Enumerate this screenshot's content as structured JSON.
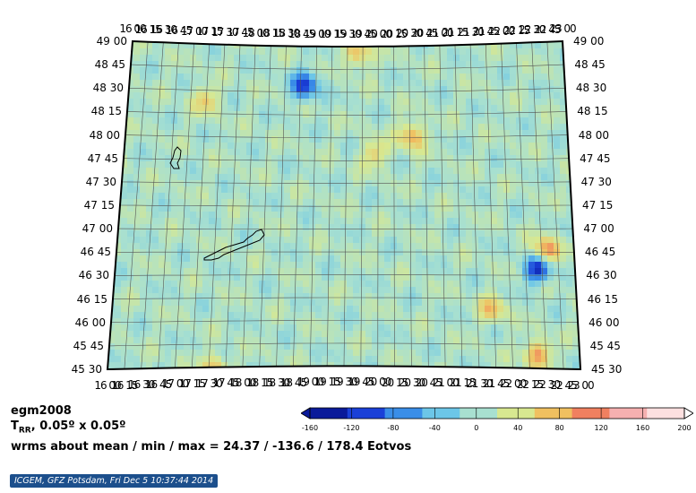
{
  "map": {
    "projection": "curved lat/lon grid (Lambert-like)",
    "lat_labels": [
      "49 00",
      "48 45",
      "48 30",
      "48 15",
      "48 00",
      "47 45",
      "47 30",
      "47 15",
      "47 00",
      "46 45",
      "46 30",
      "46 15",
      "46 00",
      "45 45",
      "45 30"
    ],
    "lon_labels_top": [
      "16 00",
      "16 15",
      "16 30",
      "16 45",
      "17 00",
      "17 15",
      "17 30",
      "17 45",
      "18 00",
      "18 15",
      "18 30",
      "18 45",
      "19 00",
      "19 15",
      "19 30",
      "19 45",
      "20 00",
      "20 15",
      "20 30",
      "20 45",
      "21 00",
      "21 15",
      "21 30",
      "21 45",
      "22 00",
      "22 15",
      "22 30",
      "22 45",
      "23 00"
    ],
    "lon_labels_bottom": [
      "16 00",
      "16 15",
      "16 30",
      "16 45",
      "17 00",
      "17 15",
      "17 30",
      "17 45",
      "18 00",
      "18 15",
      "18 30",
      "18 45",
      "19 00",
      "19 15",
      "19 30",
      "19 45",
      "20 00",
      "20 15",
      "20 30",
      "20 45",
      "21 00",
      "21 15",
      "21 30",
      "21 45",
      "22 00",
      "22 15",
      "22 30",
      "22 45",
      "23 00"
    ],
    "lake_outlines": [
      "balaton-lake",
      "neusiedl-lake"
    ]
  },
  "info": {
    "model": "egm2008",
    "quantity": "T",
    "quantity_sub": "RR",
    "resolution": ", 0.05º x 0.05º",
    "stats": "wrms about mean / min / max = 24.37 / -136.6 / 178.4 Eotvos"
  },
  "colorbar": {
    "ticks": [
      "-160",
      "-120",
      "-80",
      "-40",
      "0",
      "40",
      "80",
      "120",
      "160",
      "200"
    ],
    "min": -160,
    "max": 200,
    "colors": [
      "#0a1a9a",
      "#1a40d8",
      "#3a8ee8",
      "#6cc6e8",
      "#a8e0d0",
      "#d8e890",
      "#f0c060",
      "#f08060",
      "#f6b0b0",
      "#fde0e0"
    ]
  },
  "footer": {
    "credit": "ICGEM, GFZ Potsdam, Fri Dec 5 10:37:44 2014"
  }
}
